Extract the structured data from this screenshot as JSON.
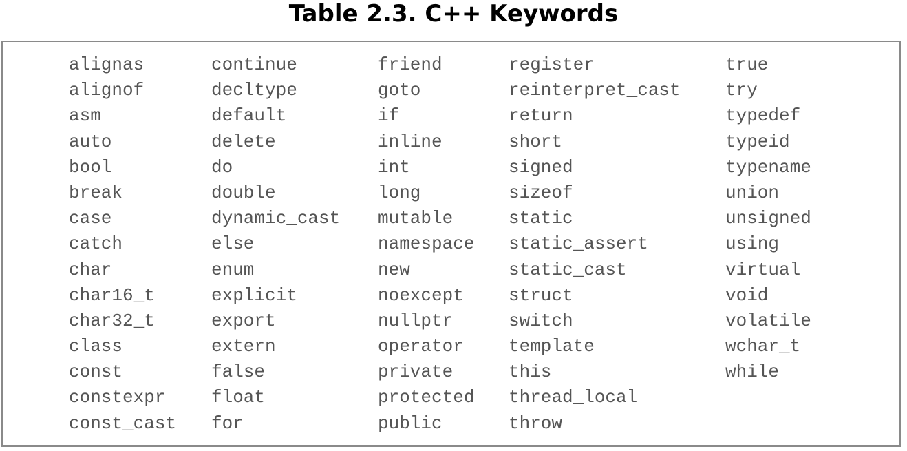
{
  "title": "Table 2.3. C++ Keywords",
  "columns": [
    [
      "alignas",
      "alignof",
      "asm",
      "auto",
      "bool",
      "break",
      "case",
      "catch",
      "char",
      "char16_t",
      "char32_t",
      "class",
      "const",
      "constexpr",
      "const_cast"
    ],
    [
      "continue",
      "decltype",
      "default",
      "delete",
      "do",
      "double",
      "dynamic_cast",
      "else",
      "enum",
      "explicit",
      "export",
      "extern",
      "false",
      "float",
      "for"
    ],
    [
      "friend",
      "goto",
      "if",
      "inline",
      "int",
      "long",
      "mutable",
      "namespace",
      "new",
      "noexcept",
      "nullptr",
      "operator",
      "private",
      "protected",
      "public"
    ],
    [
      "register",
      "reinterpret_cast",
      "return",
      "short",
      "signed",
      "sizeof",
      "static",
      "static_assert",
      "static_cast",
      "struct",
      "switch",
      "template",
      "this",
      "thread_local",
      "throw"
    ],
    [
      "true",
      "try",
      "typedef",
      "typeid",
      "typename",
      "union",
      "unsigned",
      "using",
      "virtual",
      "void",
      "volatile",
      "wchar_t",
      "while"
    ]
  ]
}
